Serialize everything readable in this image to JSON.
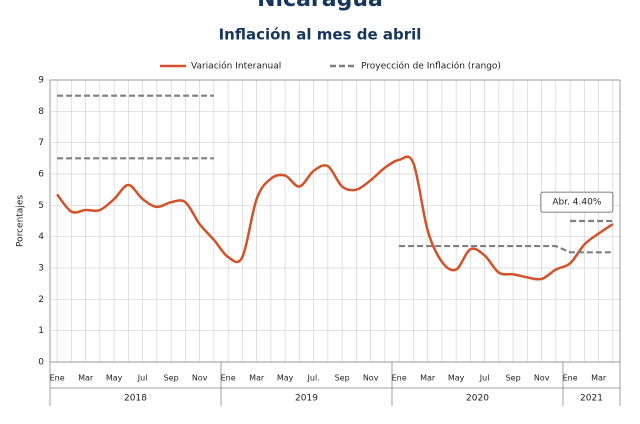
{
  "chart_data": {
    "type": "line",
    "title": "Nicaragua",
    "subtitle": "Inflación al mes de abril",
    "y_label": "Porcentajes",
    "annotation": "Abr. 4.40%",
    "categories": [
      "Ene",
      null,
      "Mar",
      null,
      "May",
      null,
      "Jul",
      null,
      "Sep",
      null,
      "Nov",
      null,
      "Ene",
      null,
      "Mar",
      null,
      "May",
      null,
      "Jul.",
      null,
      "Sep",
      null,
      "Nov",
      null,
      "Ene",
      null,
      "Mar",
      null,
      "May",
      null,
      "Jul",
      null,
      "Sep",
      null,
      "Nov",
      null,
      "Ene",
      null,
      "Mar",
      null
    ],
    "years": [
      "2018",
      "2019",
      "2020",
      "2021"
    ],
    "series": [
      {
        "name": "Variación Interanual",
        "color": "#d2522a",
        "values": [
          5.35,
          4.8,
          4.85,
          4.85,
          5.2,
          5.65,
          5.2,
          4.95,
          5.1,
          5.1,
          4.4,
          3.9,
          3.35,
          3.35,
          5.2,
          5.85,
          5.95,
          5.6,
          6.1,
          6.25,
          5.6,
          5.5,
          5.8,
          6.2,
          6.45,
          6.35,
          4.2,
          3.2,
          2.95,
          3.6,
          3.4,
          2.85,
          2.8,
          2.7,
          2.65,
          2.95,
          3.15,
          3.75,
          4.1,
          4.4
        ]
      },
      {
        "name": "Proyección de Inflación (rango)",
        "color": "#7f7f7f",
        "dashed": true,
        "values": [
          6.5,
          6.5,
          6.5,
          6.5,
          6.5,
          6.5,
          6.5,
          6.5,
          6.5,
          6.5,
          6.5,
          6.5,
          null,
          null,
          null,
          null,
          null,
          null,
          null,
          null,
          null,
          null,
          null,
          null,
          3.7,
          3.7,
          3.7,
          3.7,
          3.7,
          3.7,
          3.7,
          3.7,
          3.7,
          3.7,
          3.7,
          3.7,
          3.5,
          3.5,
          3.5,
          3.5
        ],
        "values_high": [
          8.5,
          8.5,
          8.5,
          8.5,
          8.5,
          8.5,
          8.5,
          8.5,
          8.5,
          8.5,
          8.5,
          8.5,
          null,
          null,
          null,
          null,
          null,
          null,
          null,
          null,
          null,
          null,
          null,
          null,
          null,
          null,
          null,
          null,
          null,
          null,
          null,
          null,
          null,
          null,
          null,
          null,
          4.5,
          4.5,
          4.5,
          4.5
        ]
      }
    ],
    "ylim": [
      0,
      9
    ],
    "yticks": [
      0,
      1,
      2,
      3,
      4,
      5,
      6,
      7,
      8,
      9
    ],
    "grid": true
  }
}
